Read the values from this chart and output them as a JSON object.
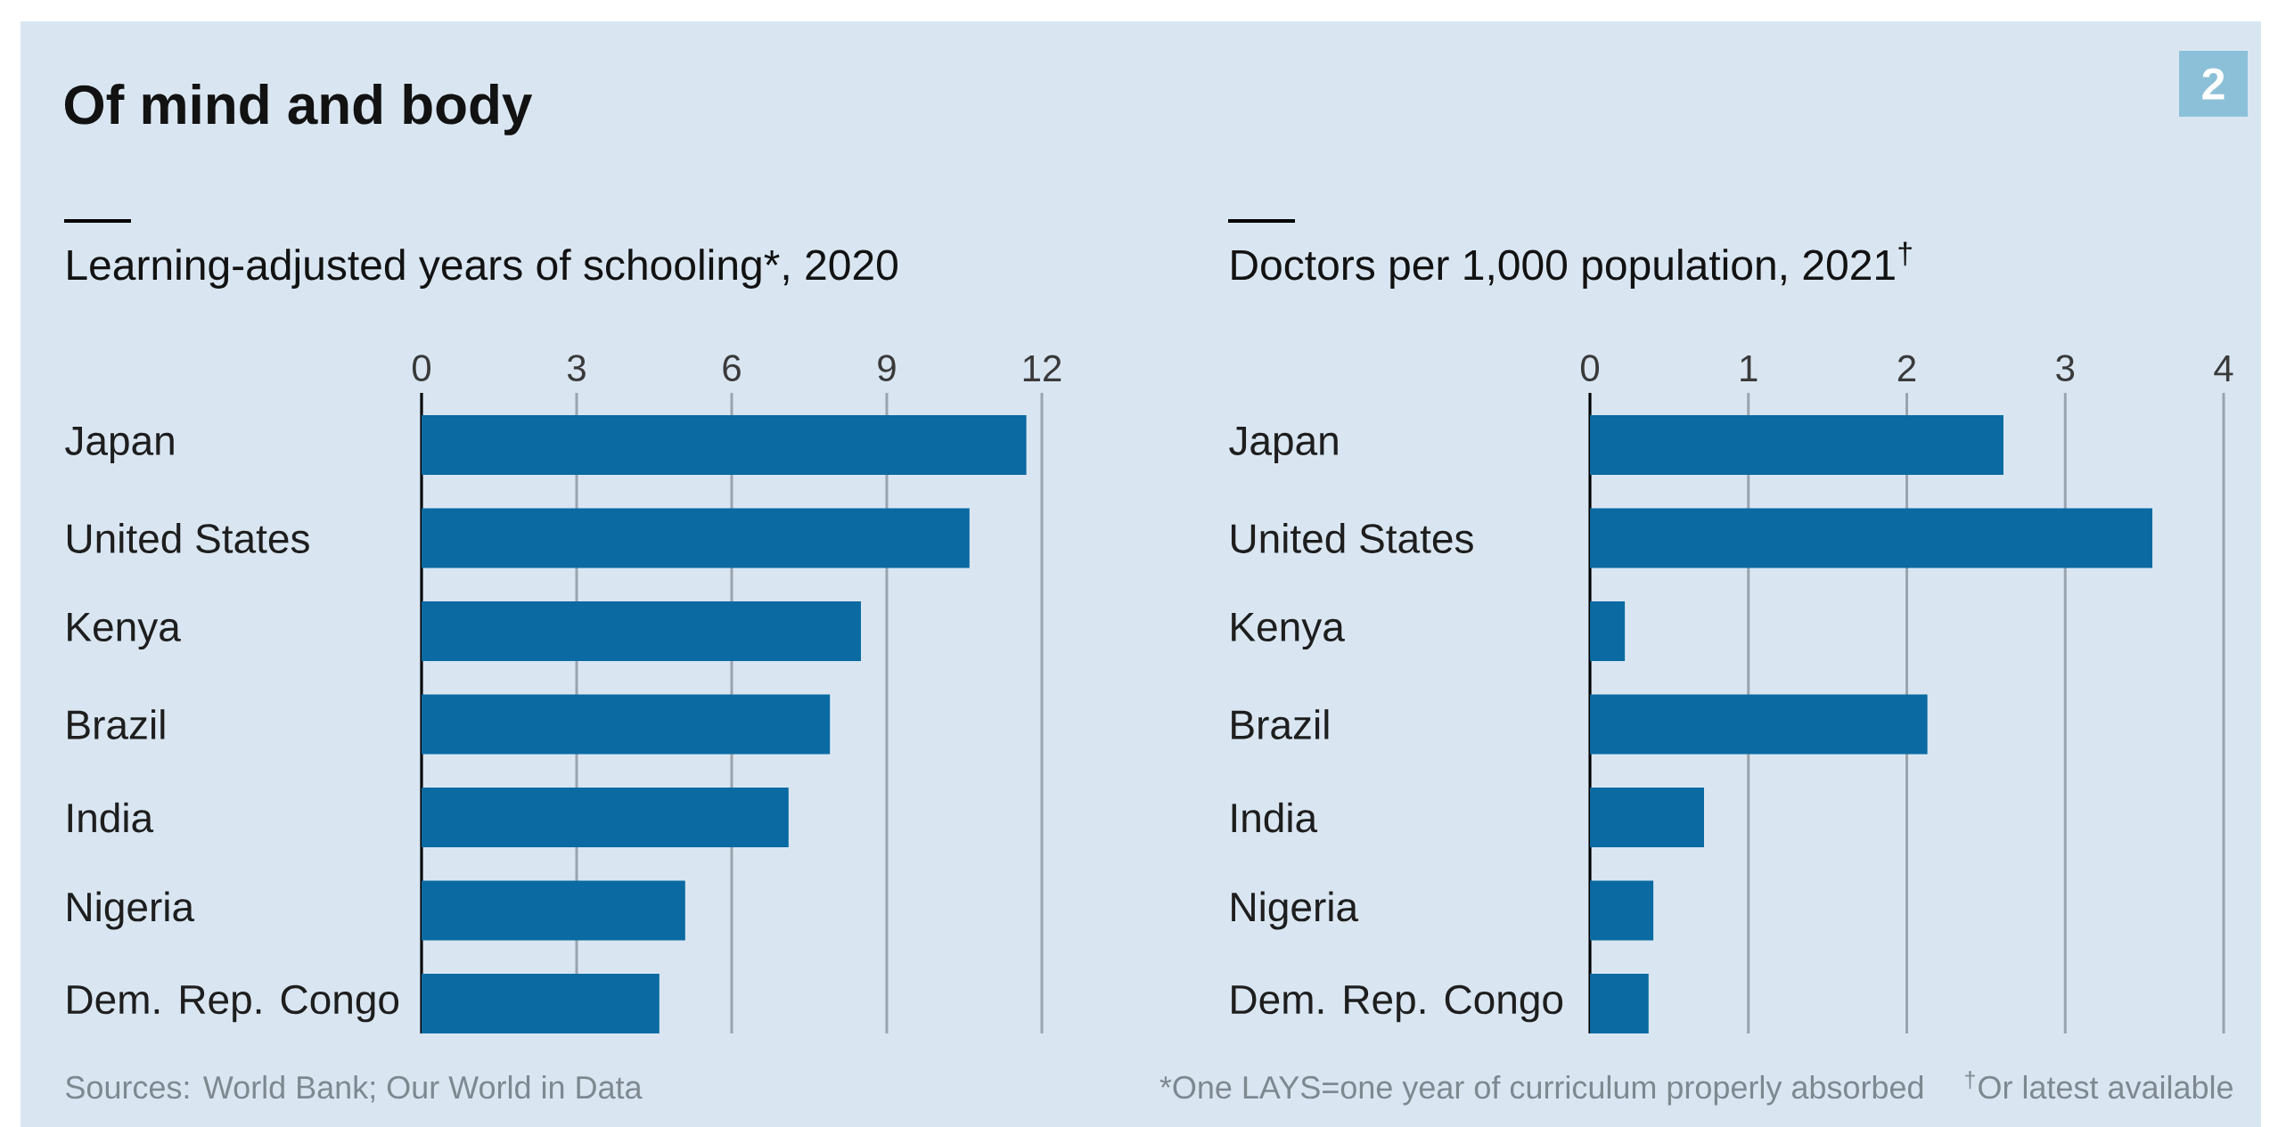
{
  "chart_data": [
    {
      "type": "bar",
      "orientation": "horizontal",
      "title": "Of mind and body",
      "subtitle": "Learning-adjusted years of schooling*, 2020",
      "categories": [
        "Japan",
        "United States",
        "Kenya",
        "Brazil",
        "India",
        "Nigeria",
        "Dem. Rep. Congo"
      ],
      "values": [
        11.7,
        10.6,
        8.5,
        7.9,
        7.1,
        5.1,
        4.6
      ],
      "color": "#0a6aa1",
      "xlim": [
        0,
        12
      ],
      "xticks": [
        0,
        3,
        6,
        9,
        12
      ],
      "grid": "x",
      "annotations": [
        "Sources: World Bank; Our World in Data"
      ]
    },
    {
      "type": "bar",
      "orientation": "horizontal",
      "subtitle": "Doctors per 1,000 population, 2021$^{†}$",
      "categories": [
        "Japan",
        "United States",
        "Kenya",
        "Brazil",
        "India",
        "Nigeria",
        "Dem. Rep. Congo"
      ],
      "values": [
        2.61,
        3.55,
        0.22,
        2.13,
        0.72,
        0.4,
        0.37
      ],
      "color": "#0a6aa1",
      "xlim": [
        0,
        4
      ],
      "xticks": [
        0,
        1,
        2,
        3,
        4
      ],
      "grid": "x",
      "annotations": [
        "2",
        "*One LAYS=one year of curriculum properly absorbed",
        "$^{†}$Or latest available"
      ]
    }
  ]
}
